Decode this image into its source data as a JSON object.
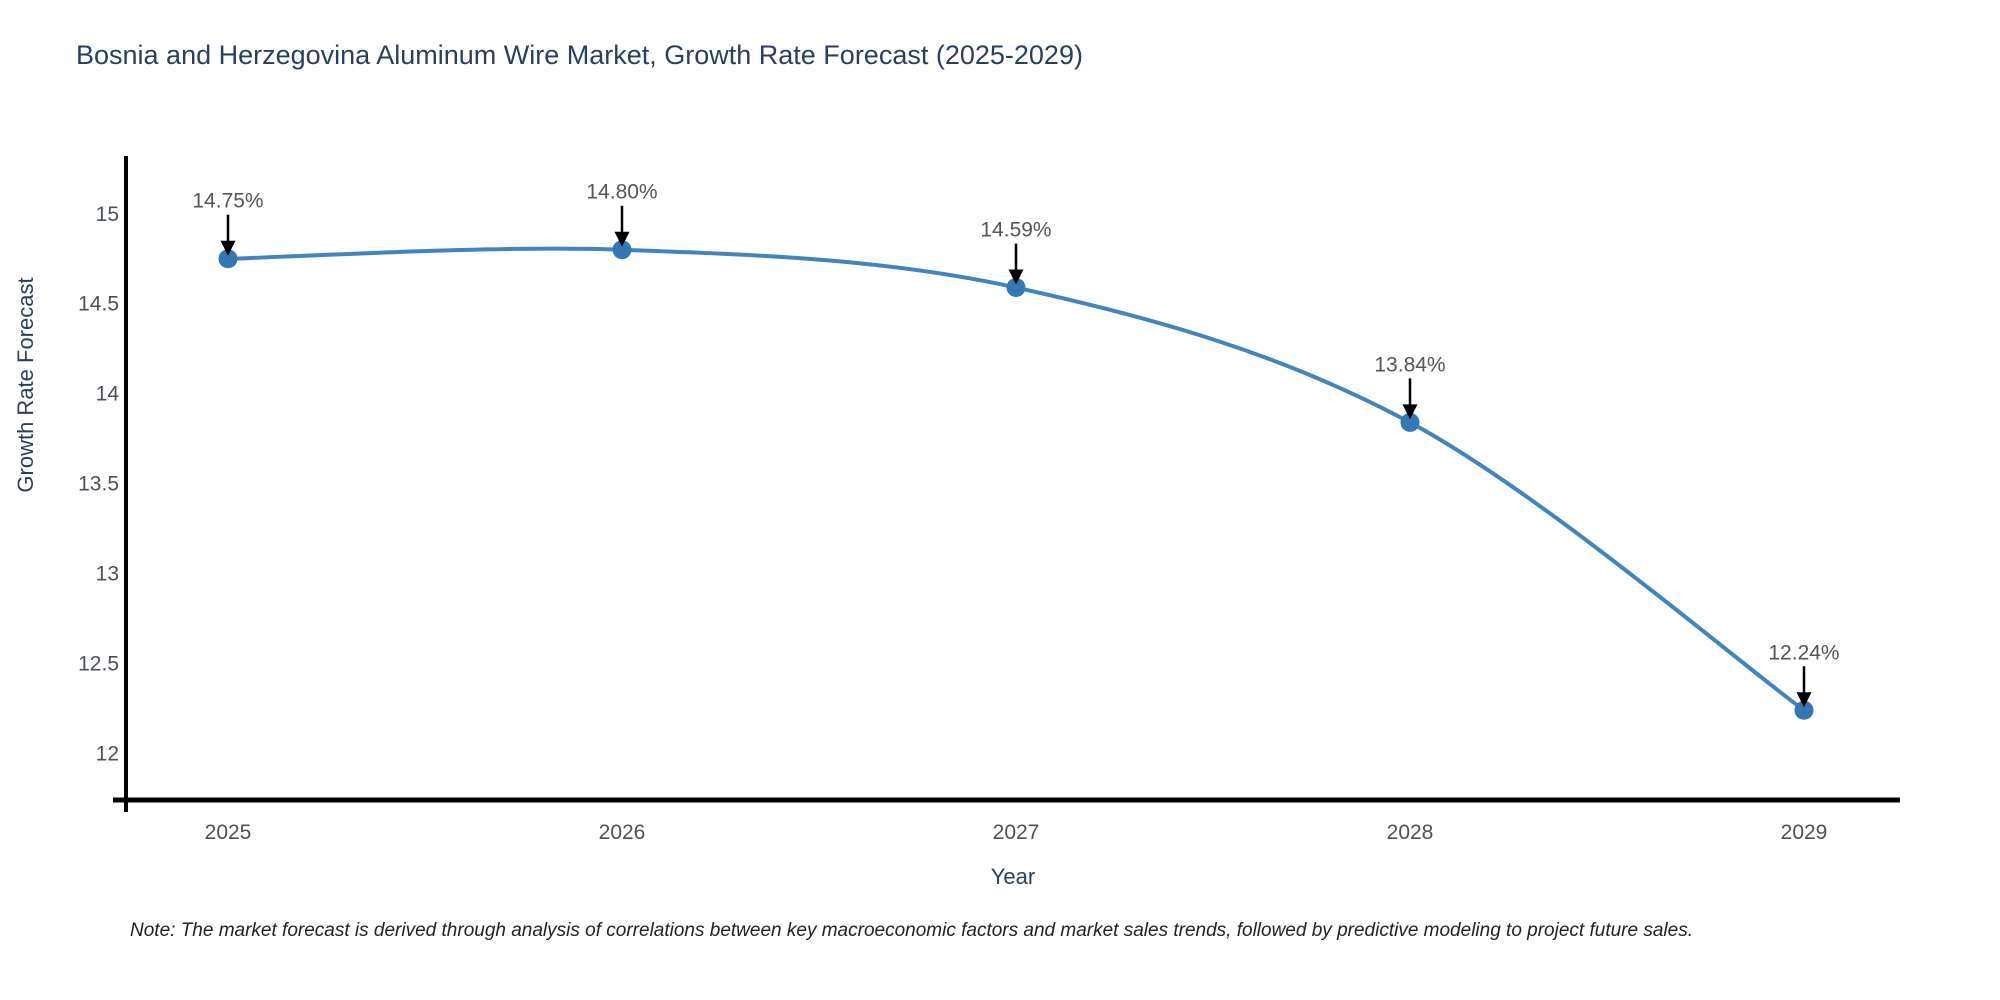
{
  "note": "Note: The market forecast is derived through analysis of correlations between key macroeconomic factors and market sales trends, followed by predictive modeling to project future sales.",
  "chart_data": {
    "type": "line",
    "title": "Bosnia and Herzegovina Aluminum Wire Market, Growth Rate Forecast (2025-2029)",
    "xlabel": "Year",
    "ylabel": "Growth Rate Forecast",
    "categories": [
      "2025",
      "2026",
      "2027",
      "2028",
      "2029"
    ],
    "series": [
      {
        "name": "Growth Rate Forecast",
        "values": [
          14.75,
          14.8,
          14.59,
          13.84,
          12.24
        ],
        "point_labels": [
          "14.75%",
          "14.80%",
          "14.59%",
          "13.84%",
          "12.24%"
        ]
      }
    ],
    "yticks": [
      12,
      12.5,
      13,
      13.5,
      14,
      14.5,
      15
    ],
    "ytick_labels": [
      "12",
      "12.5",
      "13",
      "13.5",
      "14",
      "14.5",
      "15"
    ],
    "ylim": [
      11.73,
      15.31
    ],
    "grid": false,
    "legend": "none",
    "line_shape": "spline",
    "annotations": "arrow-down-to-point",
    "colors": {
      "line": "#4285bd",
      "marker": "#3377b4",
      "axis": "#000000",
      "tick_text": "#4a5158",
      "annotation_text": "#555555",
      "annotation_arrow": "#000000",
      "title_text": "#2a3f5f"
    }
  }
}
